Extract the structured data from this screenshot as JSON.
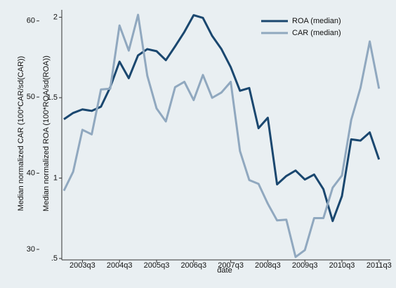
{
  "chart_data": {
    "type": "line",
    "x_label": "date",
    "y_label": "Median normalized ROA (100*ROA/sd(ROA))",
    "y2_label": "Median normalized CAR (100*CAR/sd(CAR))",
    "categories": [
      null,
      null,
      "2003q3",
      null,
      null,
      null,
      "2004q3",
      null,
      null,
      null,
      "2005q3",
      null,
      null,
      null,
      "2006q3",
      null,
      null,
      null,
      "2007q3",
      null,
      null,
      null,
      "2008q3",
      null,
      null,
      null,
      "2009q3",
      null,
      null,
      null,
      "2010q3",
      null,
      null,
      null,
      "2011q3"
    ],
    "series": [
      {
        "name": "ROA (median)",
        "color": "#1a476f",
        "values": [
          1.366,
          1.405,
          1.427,
          1.418,
          1.444,
          1.565,
          1.724,
          1.621,
          1.763,
          1.802,
          1.789,
          1.733,
          1.819,
          1.909,
          2.013,
          1.996,
          1.884,
          1.802,
          1.69,
          1.543,
          1.56,
          1.31,
          1.375,
          0.961,
          1.013,
          1.047,
          0.991,
          1.022,
          0.931,
          0.733,
          0.888,
          1.241,
          1.233,
          1.284,
          1.116
        ]
      },
      {
        "name": "CAR (median)",
        "color": "#90a8bf",
        "axis": "y2",
        "values": [
          37.7,
          40.2,
          45.7,
          45.1,
          51.0,
          51.1,
          59.4,
          56.1,
          60.8,
          52.8,
          48.5,
          46.8,
          51.3,
          52.0,
          49.6,
          52.9,
          49.9,
          50.6,
          52.0,
          42.9,
          39.1,
          38.6,
          36.0,
          33.8,
          33.9,
          29.0,
          29.9,
          34.1,
          34.1,
          38.1,
          39.7,
          47.0,
          51.2,
          57.3,
          51.1
        ]
      }
    ],
    "ylim": [
      0.5,
      2.02
    ],
    "yticks": [
      {
        "value": 0.5,
        "label": ".5"
      },
      1,
      1.5,
      2
    ],
    "y2lim": [
      28.8,
      60.9
    ],
    "y2ticks": [
      30,
      40,
      50,
      60
    ],
    "legend": "top-right"
  }
}
